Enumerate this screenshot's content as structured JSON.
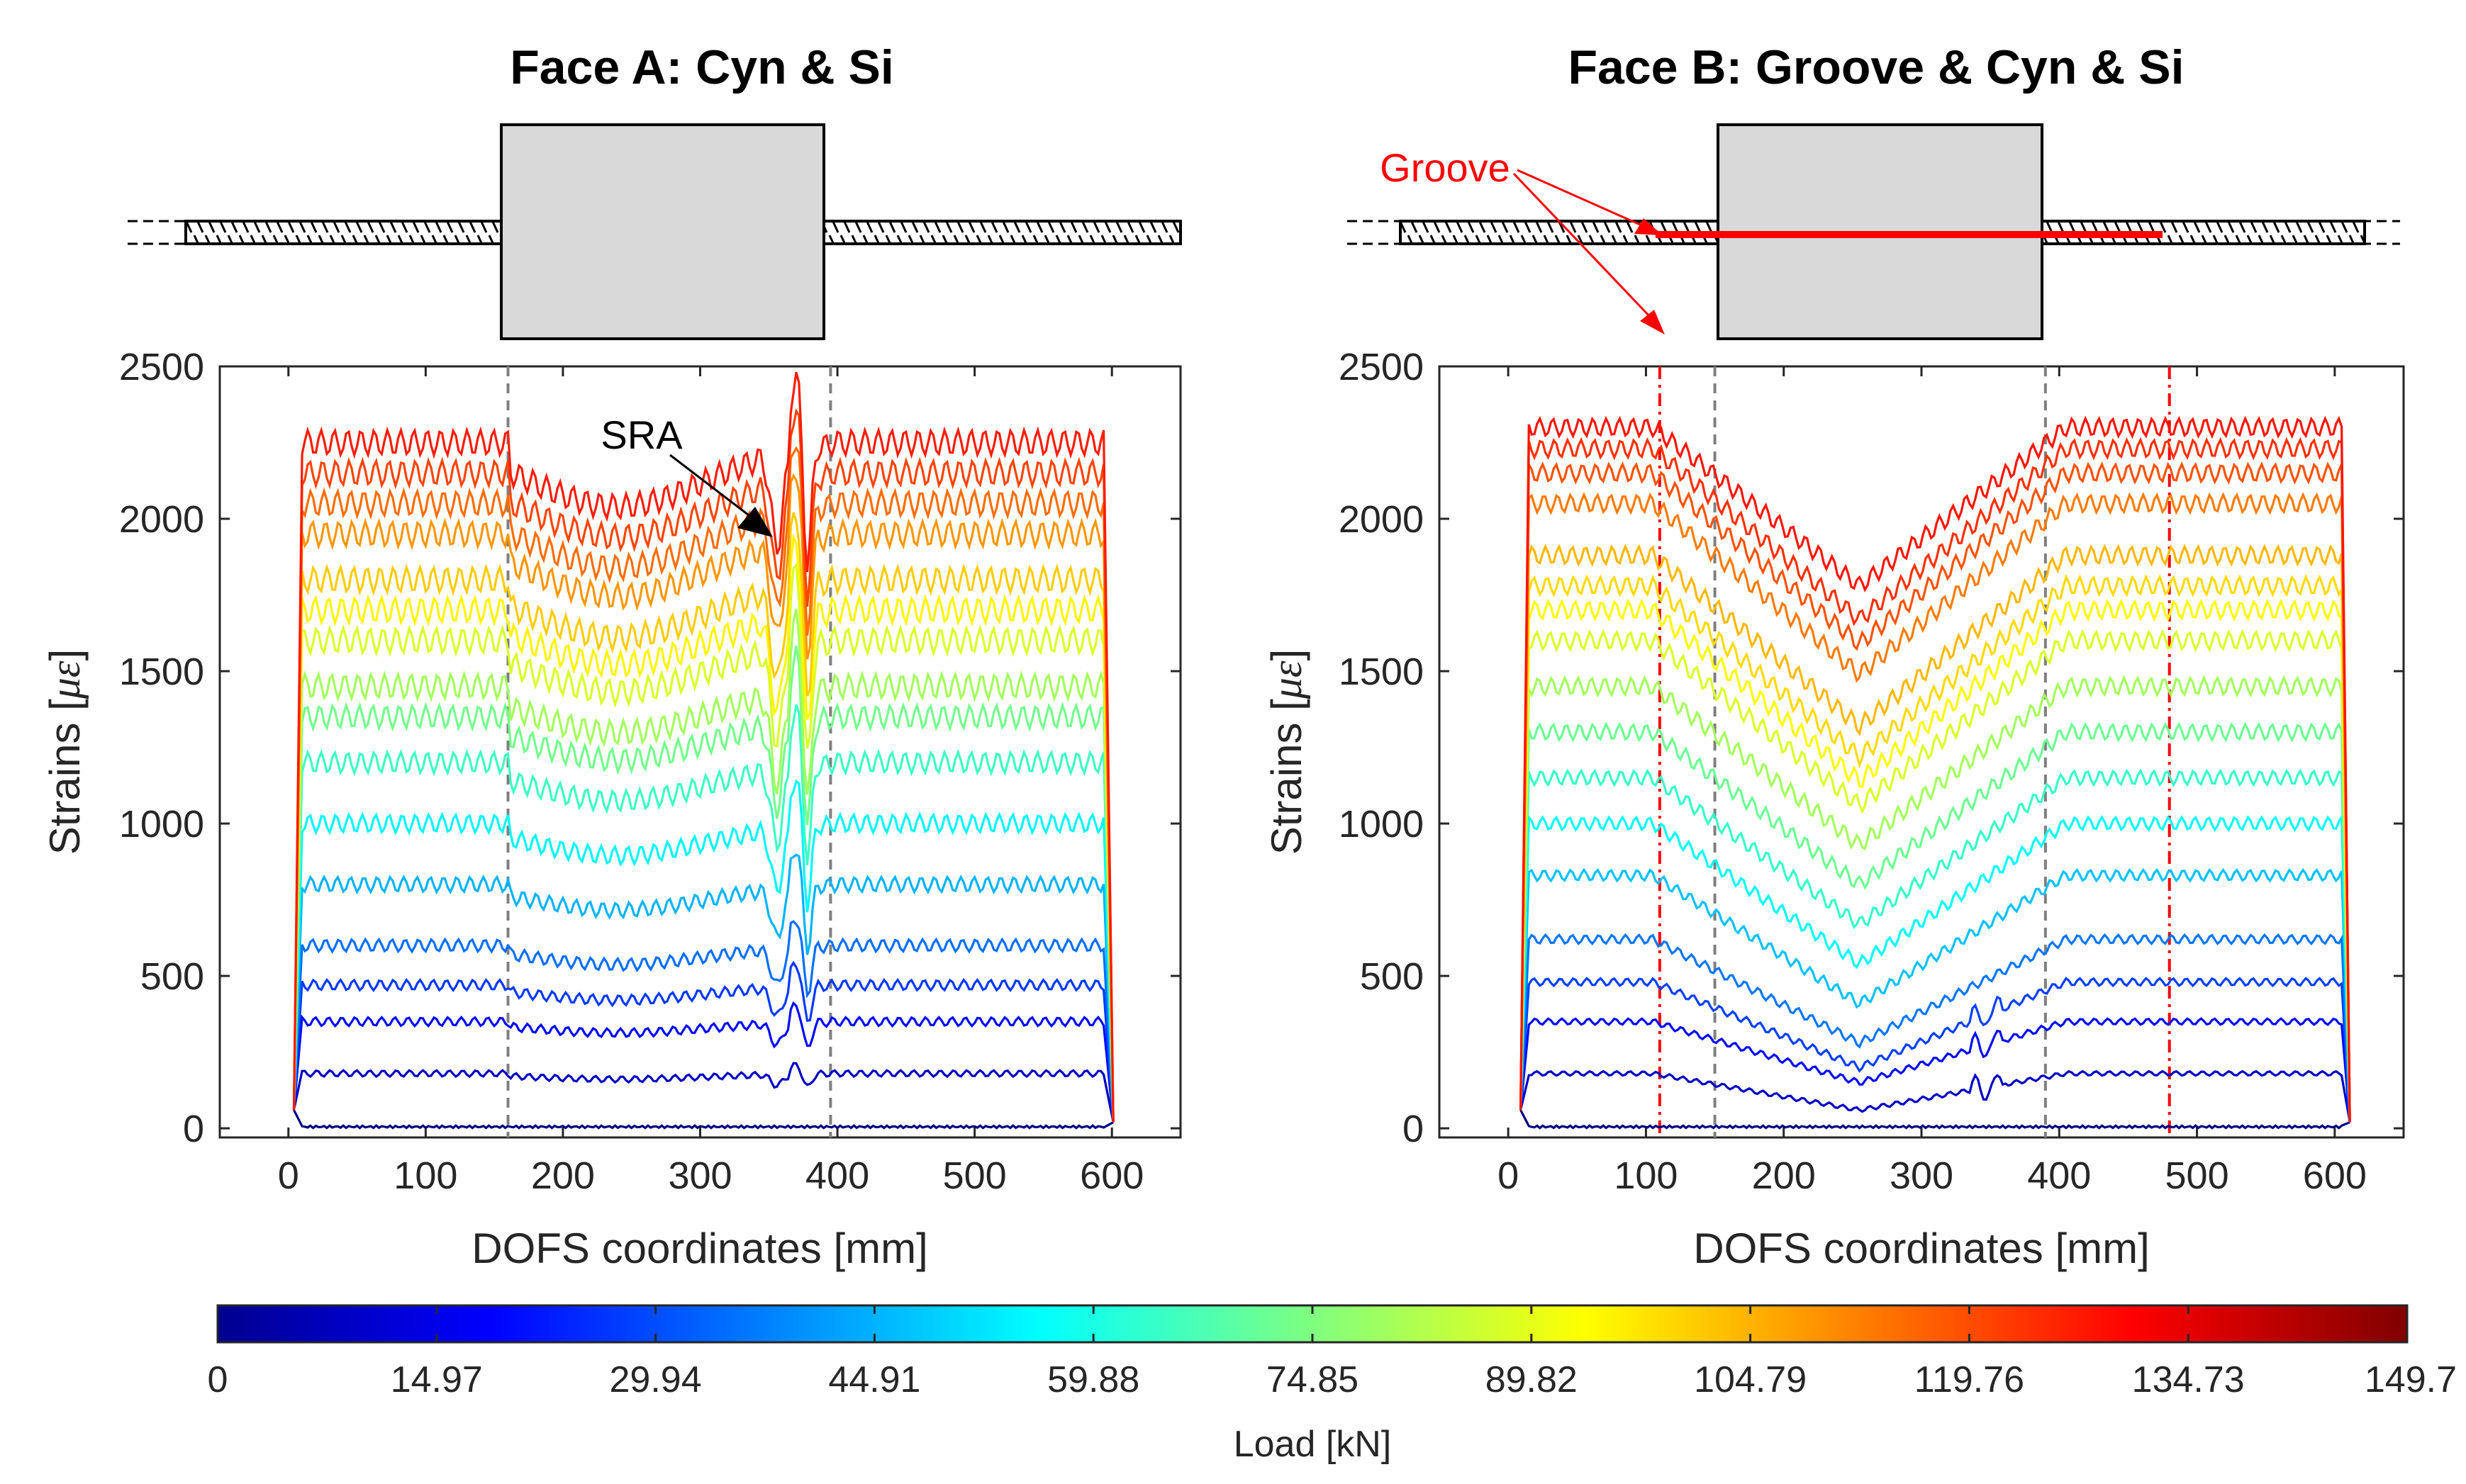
{
  "figure": {
    "type": "line",
    "description_title": "Strains along DOFS for two faces under increasing load"
  },
  "chart_data": [
    {
      "type": "line",
      "title": "Face A: Cyn & Si",
      "xlabel": "DOFS coordinates [mm]",
      "ylabel_main": "Strains [",
      "ylabel_symbol": "με",
      "ylabel_end": "]",
      "xlim": [
        -50,
        650
      ],
      "ylim": [
        -30,
        2500
      ],
      "xticks": [
        "0",
        "100",
        "200",
        "300",
        "400",
        "500",
        "600"
      ],
      "yticks": [
        "0",
        "500",
        "1000",
        "1500",
        "2000",
        "2500"
      ],
      "xtick_values": [
        0,
        100,
        200,
        300,
        400,
        500,
        600
      ],
      "ytick_values": [
        0,
        500,
        1000,
        1500,
        2000,
        2500
      ],
      "vertical_lines": [
        {
          "x": 160,
          "style": "gray dashed"
        },
        {
          "x": 395,
          "style": "gray dashed"
        }
      ],
      "annotation": {
        "text": "SRA",
        "x": 353,
        "y": 1950
      },
      "fiber_x_range": [
        10,
        595
      ],
      "block_x_range": [
        160,
        395
      ],
      "plateau_levels": [
        5,
        180,
        350,
        470,
        600,
        800,
        1000,
        1200,
        1350,
        1450,
        1600,
        1700,
        1800,
        1950,
        2050,
        2150,
        2250
      ],
      "loads_kN": [
        0,
        10,
        20,
        27,
        35,
        45,
        55,
        65,
        73,
        80,
        88,
        95,
        101,
        109,
        115,
        121,
        127
      ]
    },
    {
      "type": "line",
      "title": "Face B: Groove & Cyn & Si",
      "xlabel": "DOFS coordinates [mm]",
      "ylabel_main": "Strains [",
      "ylabel_symbol": "με",
      "ylabel_end": "]",
      "xlim": [
        -50,
        650
      ],
      "ylim": [
        -30,
        2500
      ],
      "xticks": [
        "0",
        "100",
        "200",
        "300",
        "400",
        "500",
        "600"
      ],
      "yticks": [
        "0",
        "500",
        "1000",
        "1500",
        "2000",
        "2500"
      ],
      "xtick_values": [
        0,
        100,
        200,
        300,
        400,
        500,
        600
      ],
      "ytick_values": [
        0,
        500,
        1000,
        1500,
        2000,
        2500
      ],
      "vertical_lines": [
        {
          "x": 150,
          "style": "gray dashed"
        },
        {
          "x": 390,
          "style": "gray dashed"
        },
        {
          "x": 110,
          "style": "red dashed"
        },
        {
          "x": 480,
          "style": "red dashed"
        }
      ],
      "annotation": {
        "text": "Groove",
        "x": 60,
        "y": 2500
      },
      "fiber_x_range": [
        15,
        605
      ],
      "block_x_range": [
        150,
        390
      ],
      "groove_x_range": [
        110,
        480
      ],
      "plateau_levels": [
        5,
        180,
        350,
        480,
        620,
        830,
        1000,
        1150,
        1300,
        1450,
        1600,
        1700,
        1780,
        1880,
        2050,
        2150,
        2230,
        2300
      ],
      "center_drops": [
        0,
        120,
        200,
        280,
        340,
        420,
        460,
        480,
        500,
        520,
        540,
        560,
        560,
        560,
        560,
        560,
        560,
        520
      ],
      "loads_kN": [
        0,
        10,
        20,
        28,
        36,
        47,
        56,
        64,
        72,
        80,
        88,
        94,
        99,
        104,
        113,
        119,
        124,
        128
      ]
    }
  ],
  "colorbar": {
    "label": "Load [kN]",
    "min": 0,
    "max": 149.7,
    "ticks": [
      "0",
      "14.97",
      "29.94",
      "44.91",
      "59.88",
      "74.85",
      "89.82",
      "104.79",
      "119.76",
      "134.73",
      "149.7"
    ],
    "tick_values": [
      0,
      14.97,
      29.94,
      44.91,
      59.88,
      74.85,
      89.82,
      104.79,
      119.76,
      134.73,
      149.7
    ],
    "colormap": "jet"
  },
  "colors": {
    "axis": "#262626",
    "guide_gray": "#7f7f7f",
    "groove_red": "#ff0000",
    "block_fill": "#d9d9d9"
  }
}
